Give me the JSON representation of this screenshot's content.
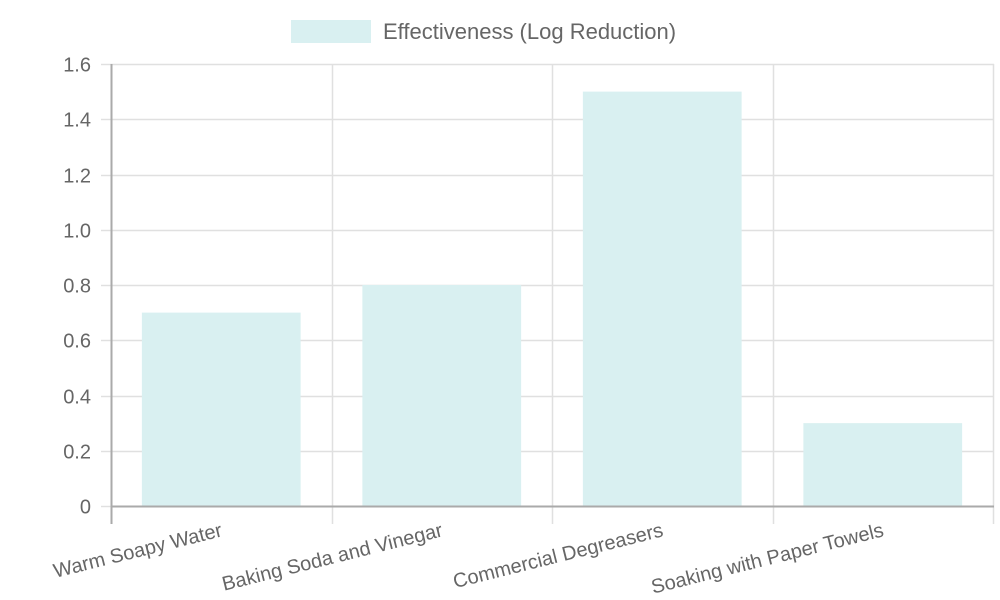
{
  "chart_data": {
    "type": "bar",
    "title": "",
    "xlabel": "",
    "ylabel": "",
    "categories": [
      "Warm Soapy Water",
      "Baking Soda and Vinegar",
      "Commercial Degreasers",
      "Soaking with Paper Towels"
    ],
    "series": [
      {
        "name": "Effectiveness (Log Reduction)",
        "values": [
          0.7,
          0.8,
          1.5,
          0.3
        ],
        "color": "#d9f0f1"
      }
    ],
    "ylim": [
      0,
      1.6
    ],
    "yticks": [
      0,
      0.2,
      0.4,
      0.6,
      0.8,
      1.0,
      1.2,
      1.4,
      1.6
    ],
    "ytick_labels": [
      "0",
      "0.2",
      "0.4",
      "0.6",
      "0.8",
      "1.0",
      "1.2",
      "1.4",
      "1.6"
    ],
    "grid": true,
    "legend_position": "top",
    "xtick_rotation_deg": -14
  },
  "legend": {
    "label": "Effectiveness (Log Reduction)",
    "swatch_color": "#d9f0f1"
  },
  "colors": {
    "grid": "#e0e0e0",
    "axis": "#aaaaaa",
    "text": "#666666"
  }
}
